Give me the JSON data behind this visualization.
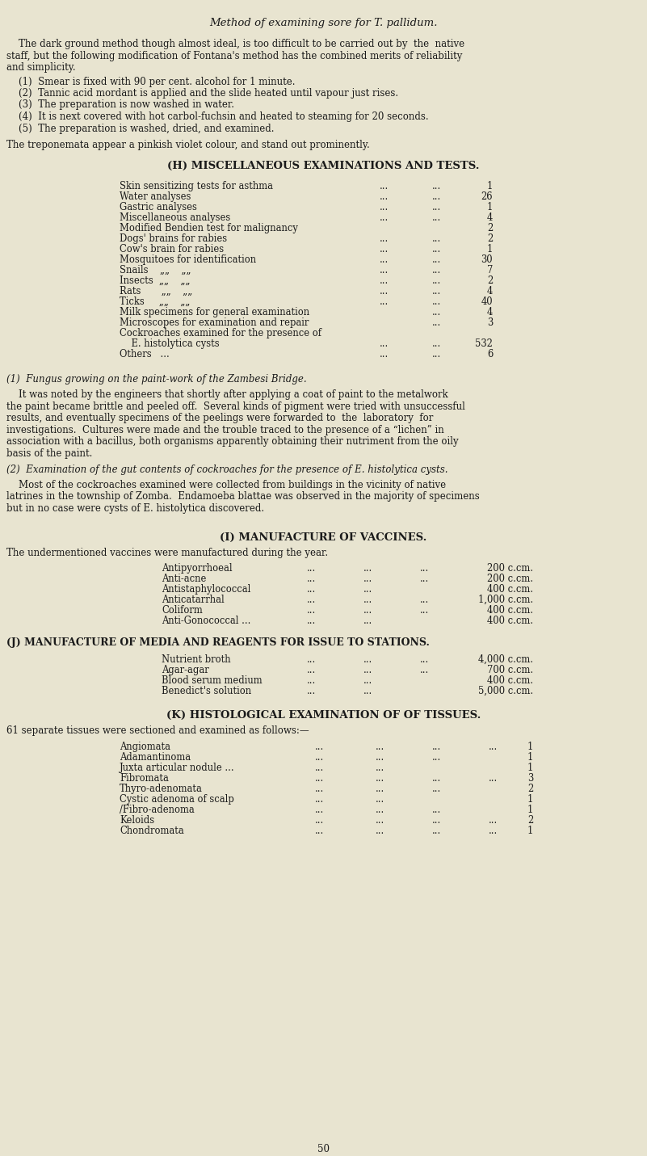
{
  "bg_color": "#e8e4d0",
  "text_color": "#1a1a1a",
  "page_width": 8.01,
  "page_height": 14.31,
  "dpi": 100,
  "title": "Method of examining sore for T. pallidum.",
  "intro_para1": "    The dark ground method though almost ideal, is too difficult to be carried out by  the  native",
  "intro_para2": "staff, but the following modification of Fontana's method has the combined merits of reliability",
  "intro_para3": "and simplicity.",
  "steps": [
    "    (1)  Smear is fixed with 90 per cent. alcohol for 1 minute.",
    "    (2)  Tannic acid mordant is applied and the slide heated until vapour just rises.",
    "    (3)  The preparation is now washed in water.",
    "    (4)  It is next covered with hot carbol-fuchsin and heated to steaming for 20 seconds.",
    "    (5)  The preparation is washed, dried, and examined."
  ],
  "trepo_line": "The treponemata appear a pinkish violet colour, and stand out prominently.",
  "section_h_title": "(H) MISCELLANEOUS EXAMINATIONS AND TESTS.",
  "section_i_title": "(I) MANUFACTURE OF VACCINES.",
  "section_j_title": "(J) MANUFACTURE OF MEDIA AND REAGENTS FOR ISSUE TO STATIONS.",
  "section_k_title": "(K) HISTOLOGICAL EXAMINATION OF OF TISSUES.",
  "vaccines_intro": "The undermentioned vaccines were manufactured during the year.",
  "histology_intro": "61 separate tissues were sectioned and examined as follows:—",
  "fungus_heading": "(1)  Fungus growing on the paint-work of the Zambesi Bridge.",
  "fungus_para": [
    "    It was noted by the engineers that shortly after applying a coat of paint to the metalwork",
    "the paint became brittle and peeled off.  Several kinds of pigment were tried with unsuccessful",
    "results, and eventually specimens of the peelings were forwarded to  the  laboratory  for",
    "investigations.  Cultures were made and the trouble traced to the presence of a “lichen” in",
    "association with a bacillus, both organisms apparently obtaining their nutriment from the oily",
    "basis of the paint."
  ],
  "cockroach_heading": "(2)  Examination of the gut contents of cockroaches for the presence of E. histolytica cysts.",
  "cockroach_para": [
    "    Most of the cockroaches examined were collected from buildings in the vicinity of native",
    "latrines in the township of Zomba.  Endamoeba blattae was observed in the majority of specimens",
    "but in no case were cysts of E. histolytica discovered."
  ],
  "page_number": "50"
}
